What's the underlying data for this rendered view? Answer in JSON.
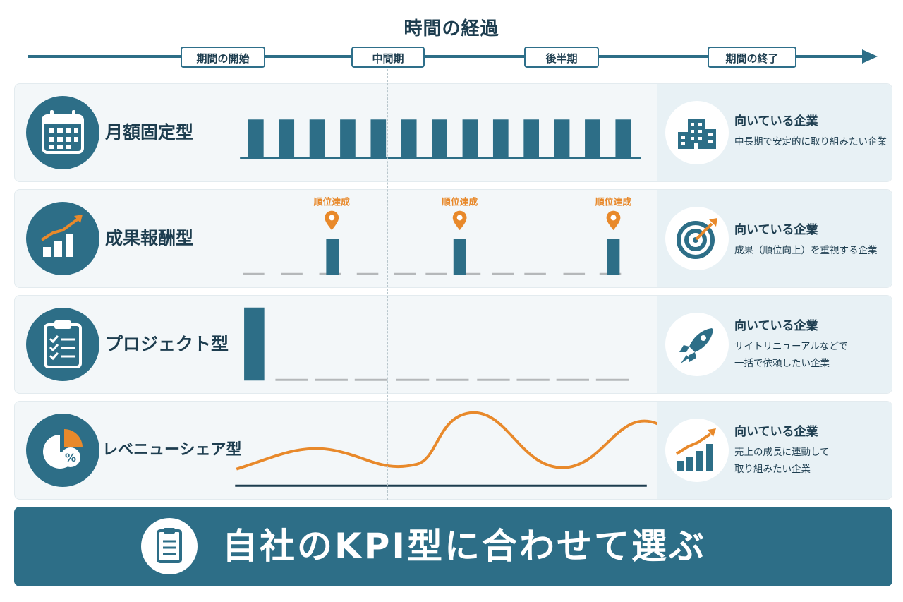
{
  "title": "時間の経過",
  "timeline": {
    "phases": [
      "期間の開始",
      "中間期",
      "後半期",
      "期間の終了"
    ]
  },
  "colors": {
    "primary": "#2d6e87",
    "dark": "#1d3d4f",
    "accent": "#e8892b",
    "gray": "#b5b8ba",
    "panel": "#f3f7f9"
  },
  "rows": [
    {
      "title": "月額固定型",
      "icon": "calendar-icon",
      "right_icon": "building-icon",
      "right_title": "向いている企業",
      "right_desc": "中長期で安定的に取り組みたい企業"
    },
    {
      "title": "成果報酬型",
      "icon": "growth-chart-icon",
      "right_icon": "target-icon",
      "right_title": "向いている企業",
      "right_desc": "成果（順位向上）を重視する企業",
      "markers": [
        "順位達成",
        "順位達成",
        "順位達成"
      ]
    },
    {
      "title": "プロジェクト型",
      "icon": "clipboard-icon",
      "right_icon": "rocket-icon",
      "right_title": "向いている企業",
      "right_desc": "サイトリニューアルなどで\n一括で依頼したい企業"
    },
    {
      "title": "レベニューシェア型",
      "icon": "pie-percent-icon",
      "right_icon": "growth-chart-icon",
      "right_title": "向いている企業",
      "right_desc": "売上の成長に連動して\n取り組みたい企業"
    }
  ],
  "banner": {
    "text": "自社のKPI型に合わせて選ぶ",
    "icon": "document-icon"
  }
}
